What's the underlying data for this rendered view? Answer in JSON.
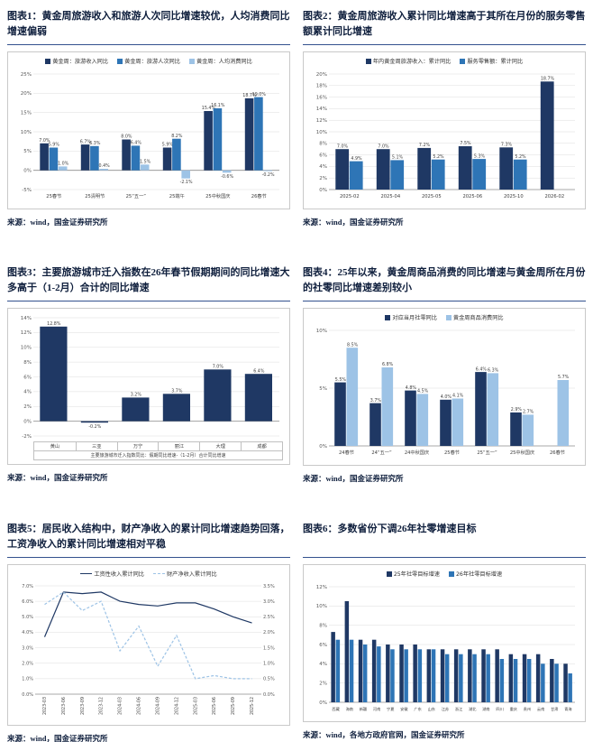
{
  "colors": {
    "navy": "#1f3864",
    "blue": "#2e75b6",
    "light_blue": "#9dc3e6",
    "title_text": "#0f1f3d",
    "grid": "#dcdcdc",
    "zero_axis": "#8c8c8c",
    "rule": "#33518e",
    "box_border": "#c9c9c9"
  },
  "figures": [
    {
      "title": "图表1：黄金周旅游收入和旅游人次同比增速较优，人均消费同比增速偏弱",
      "source": "来源：wind，国金证券研究所"
    },
    {
      "title": "图表2：黄金周旅游收入累计同比增速高于其所在月份的服务零售额累计同比增速",
      "source": "来源：wind，国金证券研究所"
    },
    {
      "title": "图表3：主要旅游城市迁入指数在26年春节假期期间的同比增速大多高于（1-2月）合计的同比增速",
      "source": "来源：wind，国金证券研究所"
    },
    {
      "title": "图表4：25年以来，黄金周商品消费的同比增速与黄金周所在月份的社零同比增速差别较小",
      "source": "来源：wind，国金证券研究所"
    },
    {
      "title": "图表5：居民收入结构中，财产净收入的累计同比增速趋势回落，工资净收入的累计同比增速相对平稳",
      "source": "来源：wind，国金证券研究所"
    },
    {
      "title": "图表6：多数省份下调26年社零增速目标",
      "source": "来源：wind，各地方政府官网，国金证券研究所"
    }
  ],
  "chart_data": [
    {
      "type": "bar",
      "categories": [
        "25春节",
        "25清明节",
        "25“五一”",
        "25端午",
        "25中秋国庆",
        "26春节"
      ],
      "series": [
        {
          "name": "黄金周：旅游收入同比",
          "color": "#1f3864",
          "values": [
            7.0,
            6.7,
            8.0,
            5.9,
            15.4,
            18.7
          ]
        },
        {
          "name": "黄金周：旅游人次同比",
          "color": "#2e75b6",
          "values": [
            5.9,
            6.3,
            6.4,
            8.2,
            16.1,
            19.0
          ]
        },
        {
          "name": "黄金周：人均消费同比",
          "color": "#9dc3e6",
          "values": [
            1.0,
            0.4,
            1.5,
            -2.1,
            -0.6,
            -0.2
          ]
        }
      ],
      "ylim": [
        -5,
        25
      ],
      "ytick": 5,
      "labels": true,
      "grid": true,
      "legend_position": "top"
    },
    {
      "type": "bar",
      "categories": [
        "2025-02",
        "2025-04",
        "2025-05",
        "2025-06",
        "2025-10",
        "2026-02"
      ],
      "series": [
        {
          "name": "年内黄金周旅游收入：累计同比",
          "color": "#1f3864",
          "values": [
            7.0,
            7.0,
            7.2,
            7.5,
            7.3,
            18.7
          ]
        },
        {
          "name": "服务零售额：累计同比",
          "color": "#2e75b6",
          "values": [
            4.9,
            5.1,
            5.2,
            5.3,
            5.2,
            null
          ]
        }
      ],
      "ylim": [
        0,
        20
      ],
      "ytick": 2,
      "labels": true,
      "grid": true,
      "legend_position": "top"
    },
    {
      "type": "bar",
      "categories": [
        "黄山",
        "三亚",
        "万宁",
        "丽江",
        "大理",
        "成都"
      ],
      "series": [
        {
          "name": "主要旅游城市迁入指数同比：假期同比增速-（1-2月）合计同比增速",
          "color": "#1f3864",
          "values": [
            12.8,
            -0.2,
            3.2,
            3.7,
            7.0,
            6.4
          ]
        }
      ],
      "ylim": [
        -2,
        14
      ],
      "ytick": 2,
      "labels": true,
      "grid": true,
      "legend": false,
      "x_table": true,
      "x_note": "主要旅游城市迁入指数同比：假期同比增速-（1-2月）合计同比增速"
    },
    {
      "type": "bar",
      "categories": [
        "24春节",
        "24“五一”",
        "24中秋国庆",
        "25春节",
        "25“五一”",
        "25中秋国庆",
        "26春节"
      ],
      "series": [
        {
          "name": "对应当月社零同比",
          "color": "#1f3864",
          "values": [
            5.5,
            3.7,
            4.8,
            4.0,
            6.4,
            2.9,
            null
          ]
        },
        {
          "name": "黄金周商品消费同比",
          "color": "#9dc3e6",
          "values": [
            8.5,
            6.8,
            4.5,
            4.1,
            6.3,
            2.7,
            5.7
          ]
        }
      ],
      "ylim": [
        0,
        10
      ],
      "ytick": 5,
      "labels": true,
      "grid": true,
      "legend_position": "top"
    },
    {
      "type": "line",
      "categories": [
        "2023-03",
        "2023-06",
        "2023-09",
        "2023-12",
        "2024-03",
        "2024-06",
        "2024-09",
        "2024-12",
        "2025-03",
        "2025-06",
        "2025-09",
        "2025-12"
      ],
      "series": [
        {
          "name": "工资性收入累计同比",
          "color": "#1f3864",
          "axis": "left",
          "dash": false,
          "values": [
            3.7,
            6.6,
            6.5,
            6.6,
            6.0,
            5.8,
            5.7,
            5.9,
            5.9,
            5.5,
            5.0,
            4.6
          ]
        },
        {
          "name": "财产净收入累计同比",
          "color": "#9dc3e6",
          "axis": "right",
          "dash": true,
          "values": [
            2.9,
            3.3,
            2.7,
            3.0,
            1.4,
            2.2,
            0.9,
            1.9,
            0.5,
            0.6,
            0.5,
            0.5
          ]
        }
      ],
      "ylim_left": [
        0,
        7
      ],
      "ytick_left": 1,
      "ylim_right": [
        0,
        3.5
      ],
      "ytick_right": 0.5,
      "grid": true,
      "legend_position": "top"
    },
    {
      "type": "bar",
      "categories": [
        "西藏",
        "海南",
        "新疆",
        "河南",
        "宁夏",
        "安徽",
        "广东",
        "山东",
        "江苏",
        "浙江",
        "湖北",
        "湖南",
        "四川",
        "重庆",
        "贵州",
        "云南",
        "甘肃",
        "青海"
      ],
      "series": [
        {
          "name": "25年社零目标增速",
          "color": "#1f3864",
          "values": [
            7.3,
            10.5,
            6.5,
            6.5,
            6.0,
            6.0,
            6.0,
            5.5,
            5.5,
            5.5,
            5.5,
            5.5,
            5.5,
            5.0,
            5.0,
            5.0,
            4.5,
            4.0
          ]
        },
        {
          "name": "26年社零目标增速",
          "color": "#2e75b6",
          "values": [
            6.5,
            6.5,
            6.0,
            5.8,
            5.5,
            5.5,
            5.5,
            5.5,
            5.0,
            5.0,
            5.0,
            5.0,
            4.5,
            4.5,
            4.5,
            4.0,
            4.0,
            3.0
          ]
        }
      ],
      "ylim": [
        0,
        12
      ],
      "ytick": 2,
      "labels": false,
      "grid": true,
      "x_font": 4.2,
      "legend_position": "top"
    }
  ]
}
